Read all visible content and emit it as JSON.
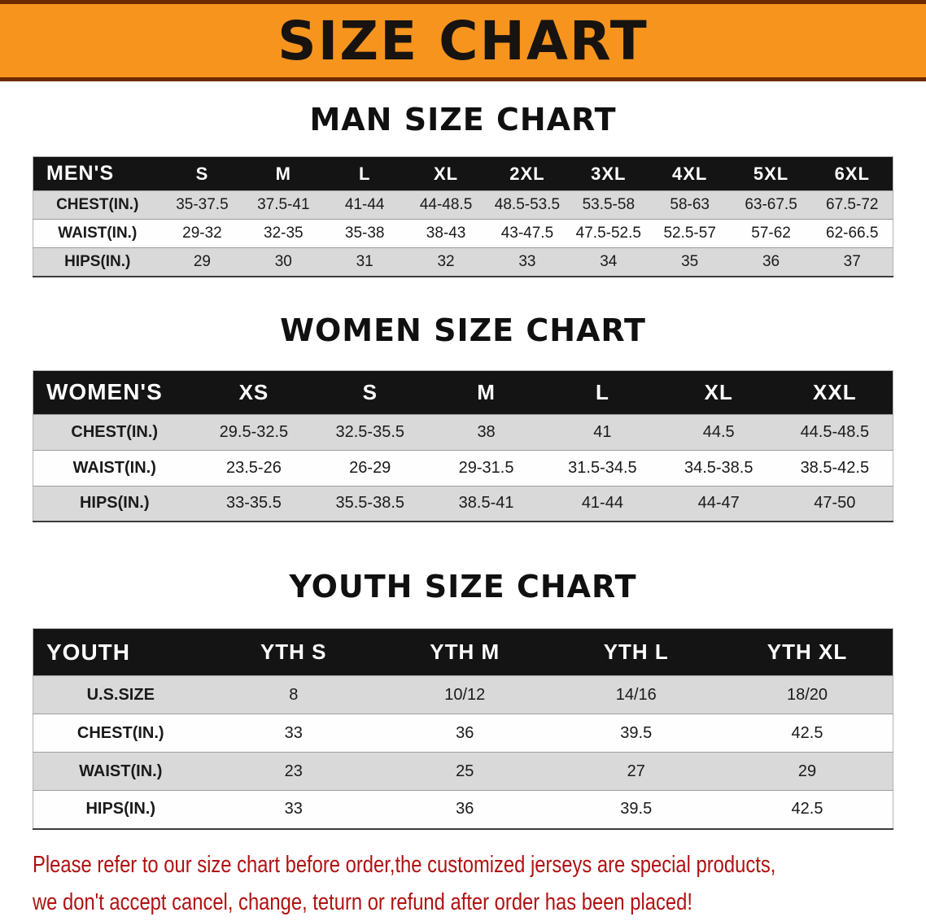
{
  "banner": {
    "title": "SIZE CHART",
    "bg_color": "#f7941e",
    "border_color": "#6d2a00"
  },
  "sections": [
    {
      "id": "men",
      "heading": "MAN SIZE CHART",
      "table": {
        "header": [
          "MEN'S",
          "S",
          "M",
          "L",
          "XL",
          "2XL",
          "3XL",
          "4XL",
          "5XL",
          "6XL"
        ],
        "rows": [
          [
            "CHEST(IN.)",
            "35-37.5",
            "37.5-41",
            "41-44",
            "44-48.5",
            "48.5-53.5",
            "53.5-58",
            "58-63",
            "63-67.5",
            "67.5-72"
          ],
          [
            "WAIST(IN.)",
            "29-32",
            "32-35",
            "35-38",
            "38-43",
            "43-47.5",
            "47.5-52.5",
            "52.5-57",
            "57-62",
            "62-66.5"
          ],
          [
            "HIPS(IN.)",
            "29",
            "30",
            "31",
            "32",
            "33",
            "34",
            "35",
            "36",
            "37"
          ]
        ]
      }
    },
    {
      "id": "women",
      "heading": "WOMEN SIZE CHART",
      "table": {
        "header": [
          "WOMEN'S",
          "XS",
          "S",
          "M",
          "L",
          "XL",
          "XXL"
        ],
        "rows": [
          [
            "CHEST(IN.)",
            "29.5-32.5",
            "32.5-35.5",
            "38",
            "41",
            "44.5",
            "44.5-48.5"
          ],
          [
            "WAIST(IN.)",
            "23.5-26",
            "26-29",
            "29-31.5",
            "31.5-34.5",
            "34.5-38.5",
            "38.5-42.5"
          ],
          [
            "HIPS(IN.)",
            "33-35.5",
            "35.5-38.5",
            "38.5-41",
            "41-44",
            "44-47",
            "47-50"
          ]
        ]
      }
    },
    {
      "id": "youth",
      "heading": "YOUTH SIZE CHART",
      "table": {
        "header": [
          "YOUTH",
          "YTH S",
          "YTH M",
          "YTH L",
          "YTH XL"
        ],
        "rows": [
          [
            "U.S.SIZE",
            "8",
            "10/12",
            "14/16",
            "18/20"
          ],
          [
            "CHEST(IN.)",
            "33",
            "36",
            "39.5",
            "42.5"
          ],
          [
            "WAIST(IN.)",
            "23",
            "25",
            "27",
            "29"
          ],
          [
            "HIPS(IN.)",
            "33",
            "36",
            "39.5",
            "42.5"
          ]
        ]
      }
    }
  ],
  "disclaimer": {
    "line1": "Please refer to our size chart before order,the customized jerseys are special products,",
    "line2": "we don't accept cancel, change, teturn or refund after order has been placed!",
    "color": "#b01111"
  }
}
